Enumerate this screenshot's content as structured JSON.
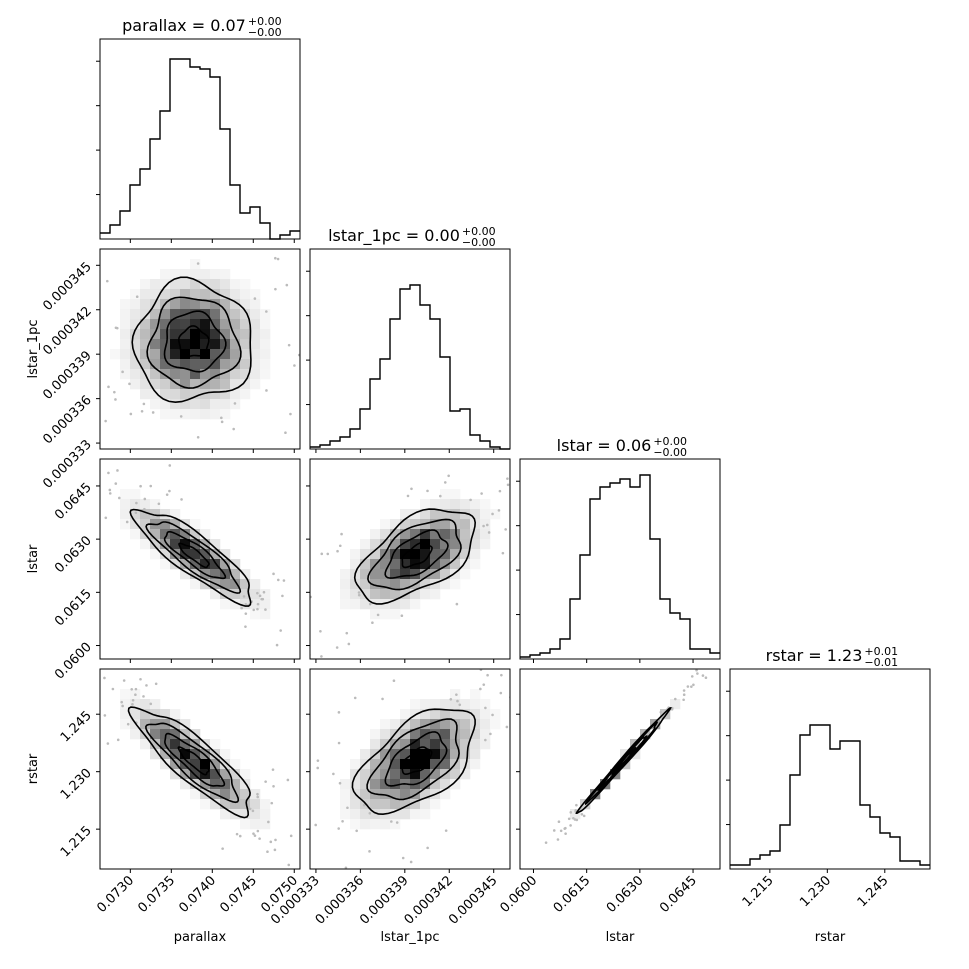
{
  "chart_data": {
    "type": "corner",
    "parameters": [
      {
        "name": "parallax",
        "xlabel": "parallax",
        "ylabel": "",
        "title": "parallax = 0.07",
        "title_sup": "+0.00",
        "title_sub": "−0.00",
        "range": [
          0.07263,
          0.07507
        ],
        "ticks": [
          0.073,
          0.0735,
          0.074,
          0.0745,
          0.075
        ],
        "tick_labels": [
          "0.0730",
          "0.0735",
          "0.0740",
          "0.0745",
          "0.0750"
        ],
        "hist": [
          0.03,
          0.07,
          0.14,
          0.27,
          0.35,
          0.5,
          0.64,
          0.9,
          0.9,
          0.86,
          0.85,
          0.81,
          0.55,
          0.27,
          0.13,
          0.16,
          0.08,
          0.0,
          0.02,
          0.04
        ]
      },
      {
        "name": "lstar_1pc",
        "xlabel": "lstar_1pc",
        "ylabel": "lstar_1pc",
        "title": "lstar_1pc = 0.00",
        "title_sup": "+0.00",
        "title_sub": "−0.00",
        "range": [
          0.0003326,
          0.0003461
        ],
        "ticks": [
          0.000333,
          0.000336,
          0.000339,
          0.000342,
          0.000345
        ],
        "tick_labels": [
          "0.000333",
          "0.000336",
          "0.000339",
          "0.000342",
          "0.000345"
        ],
        "hist": [
          0.01,
          0.02,
          0.04,
          0.06,
          0.1,
          0.2,
          0.35,
          0.45,
          0.65,
          0.8,
          0.82,
          0.72,
          0.65,
          0.46,
          0.19,
          0.2,
          0.07,
          0.04,
          0.01,
          0.0
        ]
      },
      {
        "name": "lstar",
        "xlabel": "lstar",
        "ylabel": "lstar",
        "title": "lstar = 0.06",
        "title_sup": "+0.00",
        "title_sub": "−0.00",
        "range": [
          0.05962,
          0.06526
        ],
        "ticks": [
          0.06,
          0.0615,
          0.063,
          0.0645
        ],
        "tick_labels": [
          "0.0600",
          "0.0615",
          "0.0630",
          "0.0645"
        ],
        "hist": [
          0.01,
          0.02,
          0.03,
          0.05,
          0.1,
          0.3,
          0.52,
          0.8,
          0.86,
          0.88,
          0.9,
          0.86,
          0.92,
          0.6,
          0.3,
          0.23,
          0.2,
          0.05,
          0.05,
          0.03
        ]
      },
      {
        "name": "rstar",
        "xlabel": "rstar",
        "ylabel": "rstar",
        "title": "rstar = 1.23",
        "title_sup": "+0.01",
        "title_sub": "−0.01",
        "range": [
          1.2046,
          1.2568
        ],
        "ticks": [
          1.215,
          1.23,
          1.245
        ],
        "tick_labels": [
          "1.215",
          "1.230",
          "1.245"
        ],
        "hist": [
          0.02,
          0.02,
          0.05,
          0.07,
          0.09,
          0.22,
          0.47,
          0.67,
          0.72,
          0.72,
          0.6,
          0.64,
          0.64,
          0.32,
          0.26,
          0.18,
          0.16,
          0.04,
          0.04,
          0.02
        ]
      }
    ],
    "pairs": [
      {
        "x": 0,
        "y": 1,
        "center": [
          0.07377,
          0.0003398
        ],
        "sigma": [
          0.00036,
          2e-06
        ],
        "rho": 0.0
      },
      {
        "x": 0,
        "y": 2,
        "center": [
          0.07378,
          0.06255
        ],
        "sigma": [
          0.00036,
          0.00065
        ],
        "rho": -0.86
      },
      {
        "x": 1,
        "y": 2,
        "center": [
          0.0003398,
          0.06255
        ],
        "sigma": [
          2e-06,
          0.00065
        ],
        "rho": 0.55
      },
      {
        "x": 0,
        "y": 3,
        "center": [
          0.07378,
          1.2328
        ],
        "sigma": [
          0.00036,
          0.0068
        ],
        "rho": -0.86
      },
      {
        "x": 1,
        "y": 3,
        "center": [
          0.0003398,
          1.2328
        ],
        "sigma": [
          2e-06,
          0.0068
        ],
        "rho": 0.55
      },
      {
        "x": 2,
        "y": 3,
        "center": [
          0.06255,
          1.2328
        ],
        "sigma": [
          0.00065,
          0.0068
        ],
        "rho": 0.995
      }
    ]
  }
}
